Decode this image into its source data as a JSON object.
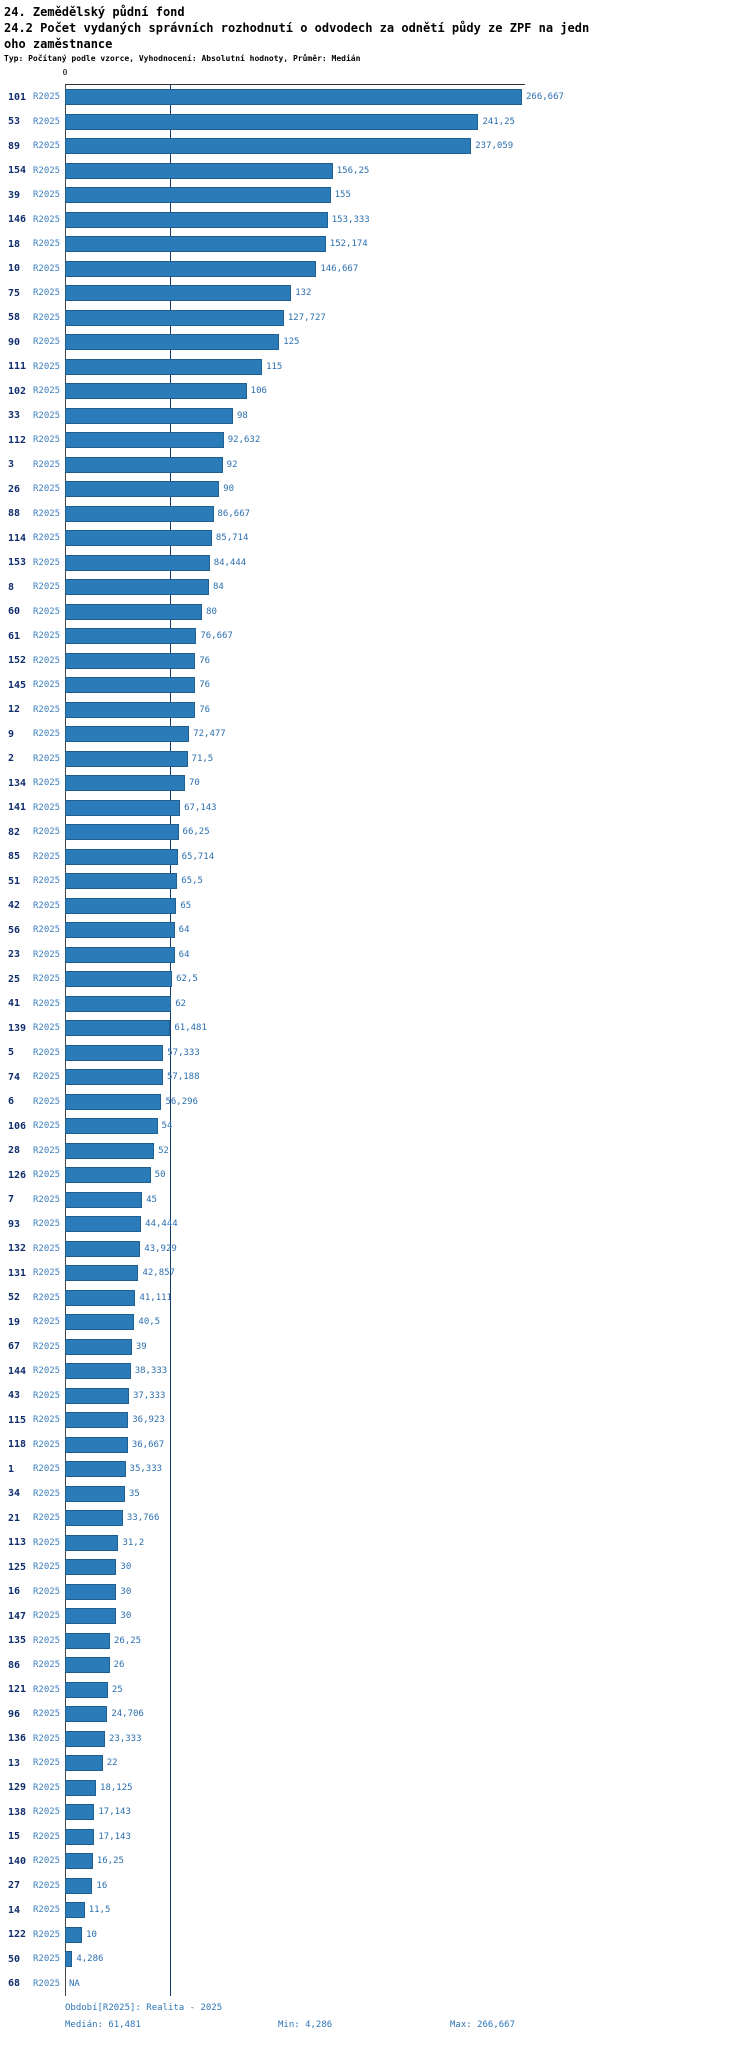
{
  "header": {
    "title1": "24. Zemědělský půdní fond",
    "title2": "24.2 Počet vydaných správních rozhodnutí o odvodech za odnětí půdy ze ZPF na jedn",
    "title3": "oho zaměstnance",
    "meta": "Typ: Počítaný podle vzorce, Vyhodnocení: Absolutní hodnoty, Průměr: Medián"
  },
  "axis": {
    "zero_label": "0"
  },
  "chart_data": {
    "type": "bar",
    "orientation": "horizontal",
    "title": "24. Zemědělský půdní fond",
    "subtitle": "24.2 Počet vydaných správních rozhodnutí o odvodech za odnětí půdy ze ZPF na jednoho zaměstnance",
    "period_label": "R2025",
    "xlim": [
      0,
      266.667
    ],
    "median_value": 61.481,
    "min_value": 4.286,
    "max_value": 266.667,
    "bar_color": "#2b7bb9",
    "bar_border_color": "#1f5f92",
    "median_line_color": "#123a6b",
    "value_text_color": "#2b6faf",
    "rows": [
      {
        "id": "101",
        "label": "266,667",
        "value": 266.667
      },
      {
        "id": "53",
        "label": "241,25",
        "value": 241.25
      },
      {
        "id": "89",
        "label": "237,059",
        "value": 237.059
      },
      {
        "id": "154",
        "label": "156,25",
        "value": 156.25
      },
      {
        "id": "39",
        "label": "155",
        "value": 155
      },
      {
        "id": "146",
        "label": "153,333",
        "value": 153.333
      },
      {
        "id": "18",
        "label": "152,174",
        "value": 152.174
      },
      {
        "id": "10",
        "label": "146,667",
        "value": 146.667
      },
      {
        "id": "75",
        "label": "132",
        "value": 132
      },
      {
        "id": "58",
        "label": "127,727",
        "value": 127.727
      },
      {
        "id": "90",
        "label": "125",
        "value": 125
      },
      {
        "id": "111",
        "label": "115",
        "value": 115
      },
      {
        "id": "102",
        "label": "106",
        "value": 106
      },
      {
        "id": "33",
        "label": "98",
        "value": 98
      },
      {
        "id": "112",
        "label": "92,632",
        "value": 92.632
      },
      {
        "id": "3",
        "label": "92",
        "value": 92
      },
      {
        "id": "26",
        "label": "90",
        "value": 90
      },
      {
        "id": "88",
        "label": "86,667",
        "value": 86.667
      },
      {
        "id": "114",
        "label": "85,714",
        "value": 85.714
      },
      {
        "id": "153",
        "label": "84,444",
        "value": 84.444
      },
      {
        "id": "8",
        "label": "84",
        "value": 84
      },
      {
        "id": "60",
        "label": "80",
        "value": 80
      },
      {
        "id": "61",
        "label": "76,667",
        "value": 76.667
      },
      {
        "id": "152",
        "label": "76",
        "value": 76
      },
      {
        "id": "145",
        "label": "76",
        "value": 76
      },
      {
        "id": "12",
        "label": "76",
        "value": 76
      },
      {
        "id": "9",
        "label": "72,477",
        "value": 72.477
      },
      {
        "id": "2",
        "label": "71,5",
        "value": 71.5
      },
      {
        "id": "134",
        "label": "70",
        "value": 70
      },
      {
        "id": "141",
        "label": "67,143",
        "value": 67.143
      },
      {
        "id": "82",
        "label": "66,25",
        "value": 66.25
      },
      {
        "id": "85",
        "label": "65,714",
        "value": 65.714
      },
      {
        "id": "51",
        "label": "65,5",
        "value": 65.5
      },
      {
        "id": "42",
        "label": "65",
        "value": 65
      },
      {
        "id": "56",
        "label": "64",
        "value": 64
      },
      {
        "id": "23",
        "label": "64",
        "value": 64
      },
      {
        "id": "25",
        "label": "62,5",
        "value": 62.5
      },
      {
        "id": "41",
        "label": "62",
        "value": 62
      },
      {
        "id": "139",
        "label": "61,481",
        "value": 61.481
      },
      {
        "id": "5",
        "label": "57,333",
        "value": 57.333
      },
      {
        "id": "74",
        "label": "57,188",
        "value": 57.188
      },
      {
        "id": "6",
        "label": "56,296",
        "value": 56.296
      },
      {
        "id": "106",
        "label": "54",
        "value": 54
      },
      {
        "id": "28",
        "label": "52",
        "value": 52
      },
      {
        "id": "126",
        "label": "50",
        "value": 50
      },
      {
        "id": "7",
        "label": "45",
        "value": 45
      },
      {
        "id": "93",
        "label": "44,444",
        "value": 44.444
      },
      {
        "id": "132",
        "label": "43,929",
        "value": 43.929
      },
      {
        "id": "131",
        "label": "42,857",
        "value": 42.857
      },
      {
        "id": "52",
        "label": "41,111",
        "value": 41.111
      },
      {
        "id": "19",
        "label": "40,5",
        "value": 40.5
      },
      {
        "id": "67",
        "label": "39",
        "value": 39
      },
      {
        "id": "144",
        "label": "38,333",
        "value": 38.333
      },
      {
        "id": "43",
        "label": "37,333",
        "value": 37.333
      },
      {
        "id": "115",
        "label": "36,923",
        "value": 36.923
      },
      {
        "id": "118",
        "label": "36,667",
        "value": 36.667
      },
      {
        "id": "1",
        "label": "35,333",
        "value": 35.333
      },
      {
        "id": "34",
        "label": "35",
        "value": 35
      },
      {
        "id": "21",
        "label": "33,766",
        "value": 33.766
      },
      {
        "id": "113",
        "label": "31,2",
        "value": 31.2
      },
      {
        "id": "125",
        "label": "30",
        "value": 30
      },
      {
        "id": "16",
        "label": "30",
        "value": 30
      },
      {
        "id": "147",
        "label": "30",
        "value": 30
      },
      {
        "id": "135",
        "label": "26,25",
        "value": 26.25
      },
      {
        "id": "86",
        "label": "26",
        "value": 26
      },
      {
        "id": "121",
        "label": "25",
        "value": 25
      },
      {
        "id": "96",
        "label": "24,706",
        "value": 24.706
      },
      {
        "id": "136",
        "label": "23,333",
        "value": 23.333
      },
      {
        "id": "13",
        "label": "22",
        "value": 22
      },
      {
        "id": "129",
        "label": "18,125",
        "value": 18.125
      },
      {
        "id": "138",
        "label": "17,143",
        "value": 17.143
      },
      {
        "id": "15",
        "label": "17,143",
        "value": 17.143
      },
      {
        "id": "140",
        "label": "16,25",
        "value": 16.25
      },
      {
        "id": "27",
        "label": "16",
        "value": 16
      },
      {
        "id": "14",
        "label": "11,5",
        "value": 11.5
      },
      {
        "id": "122",
        "label": "10",
        "value": 10
      },
      {
        "id": "50",
        "label": "4,286",
        "value": 4.286
      },
      {
        "id": "68",
        "label": "NA",
        "value": null
      }
    ]
  },
  "footer": {
    "period": "Období[R2025]: Realita - 2025",
    "median_text": "Medián: 61,481",
    "min_text": "Min: 4,286",
    "max_text": "Max: 266,667"
  }
}
